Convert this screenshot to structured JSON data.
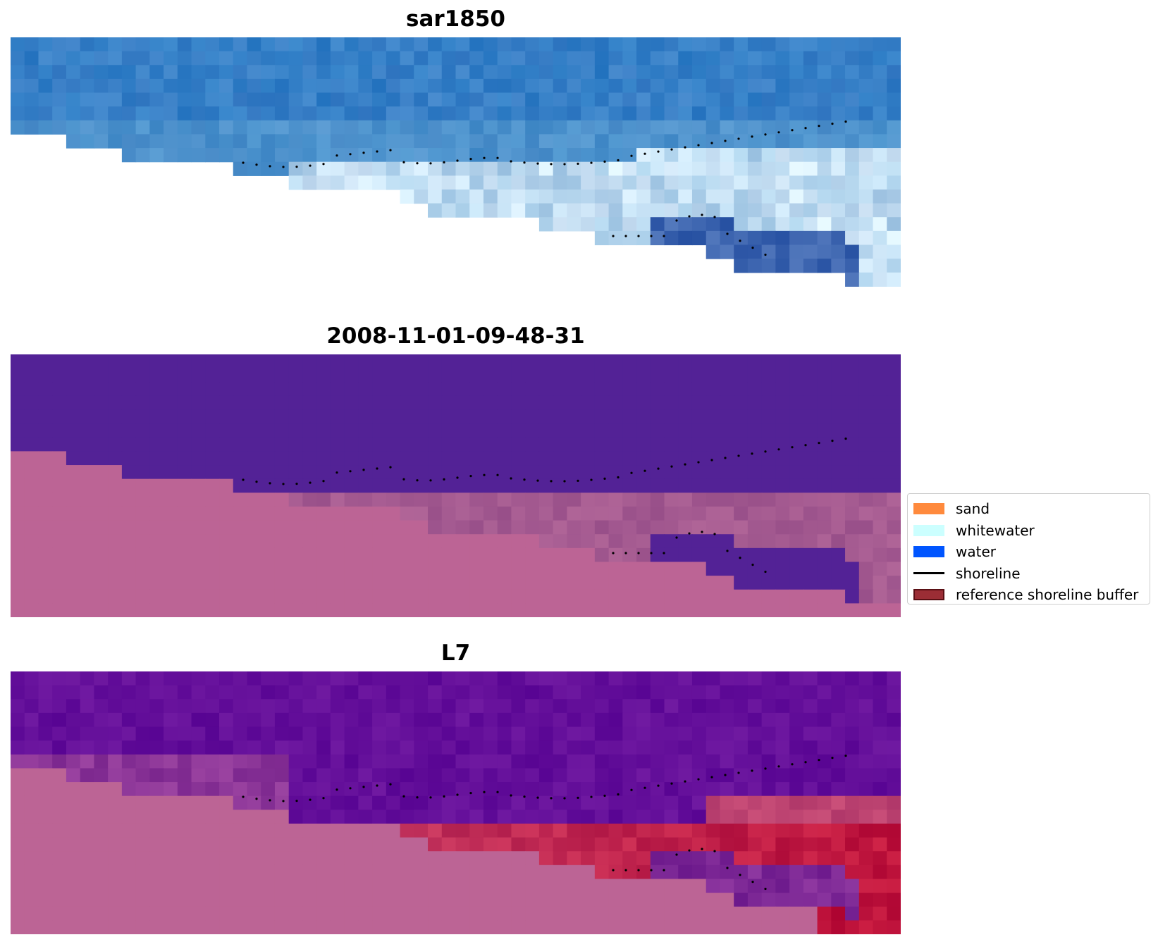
{
  "panels": [
    {
      "title": "sar1850",
      "mode": "sar"
    },
    {
      "title": "2008-11-01-09-48-31",
      "mode": "class"
    },
    {
      "title": "L7",
      "mode": "l7"
    }
  ],
  "legend": {
    "items": [
      {
        "label": "sand",
        "kind": "patch",
        "color": "#ff8a3d",
        "edge": "#ff8a3d"
      },
      {
        "label": "whitewater",
        "kind": "patch",
        "color": "#ccffff",
        "edge": "#ccffff"
      },
      {
        "label": "water",
        "kind": "patch",
        "color": "#0055ff",
        "edge": "#0055ff"
      },
      {
        "label": "shoreline",
        "kind": "line",
        "color": "#000000"
      },
      {
        "label": "reference shoreline buffer",
        "kind": "patch",
        "color": "#9b2d35",
        "edge": "#5a0f14"
      }
    ]
  },
  "colors": {
    "sar_blue": "#2f7ec6",
    "class_water": "#532296",
    "class_land": "#bc6495",
    "l7_water": "#640f9a",
    "l7_land": "#bc6495",
    "l7_red": "#c0143c"
  }
}
